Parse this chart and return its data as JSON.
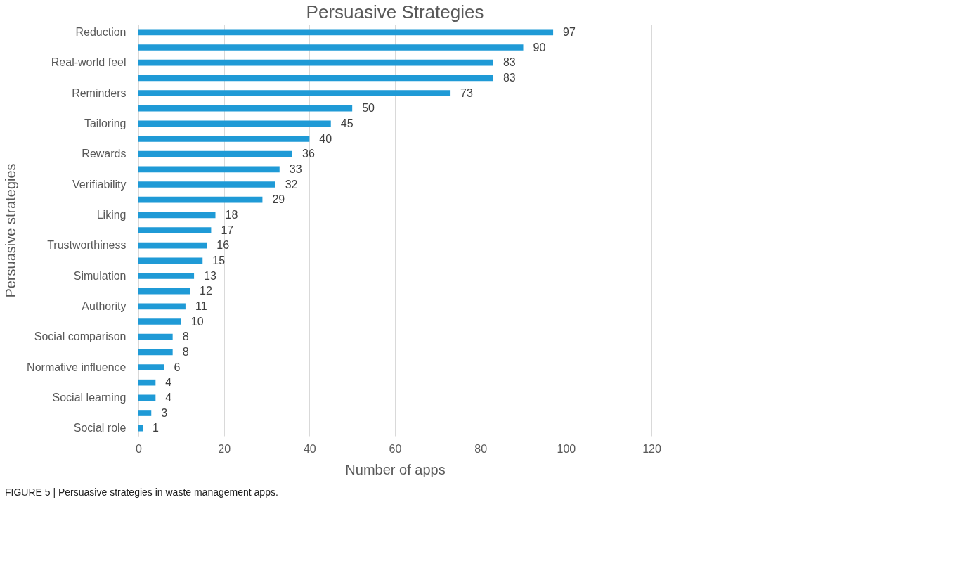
{
  "chart_data": {
    "type": "bar",
    "orientation": "horizontal",
    "title": "Persuasive Strategies",
    "xlabel": "Number of apps",
    "ylabel": "Persuasive strategies",
    "categories": [
      "Reduction",
      null,
      "Real-world feel",
      null,
      "Reminders",
      null,
      "Tailoring",
      null,
      "Rewards",
      null,
      "Verifiability",
      null,
      "Liking",
      null,
      "Trustworthiness",
      null,
      "Simulation",
      null,
      "Authority",
      null,
      "Social comparison",
      null,
      "Normative influence",
      null,
      "Social learning",
      null,
      "Social role"
    ],
    "values": [
      97,
      90,
      83,
      83,
      73,
      50,
      45,
      40,
      36,
      33,
      32,
      29,
      18,
      17,
      16,
      15,
      13,
      12,
      11,
      10,
      8,
      8,
      6,
      4,
      4,
      3,
      1
    ],
    "color": "#1f9ad6",
    "xlim": [
      0,
      120
    ],
    "xticks": [
      0,
      20,
      40,
      60,
      80,
      100,
      120
    ],
    "grid": "x",
    "data_labels": true,
    "annotations": [
      "FIGURE 5 | Persuasive strategies in waste management apps."
    ]
  }
}
